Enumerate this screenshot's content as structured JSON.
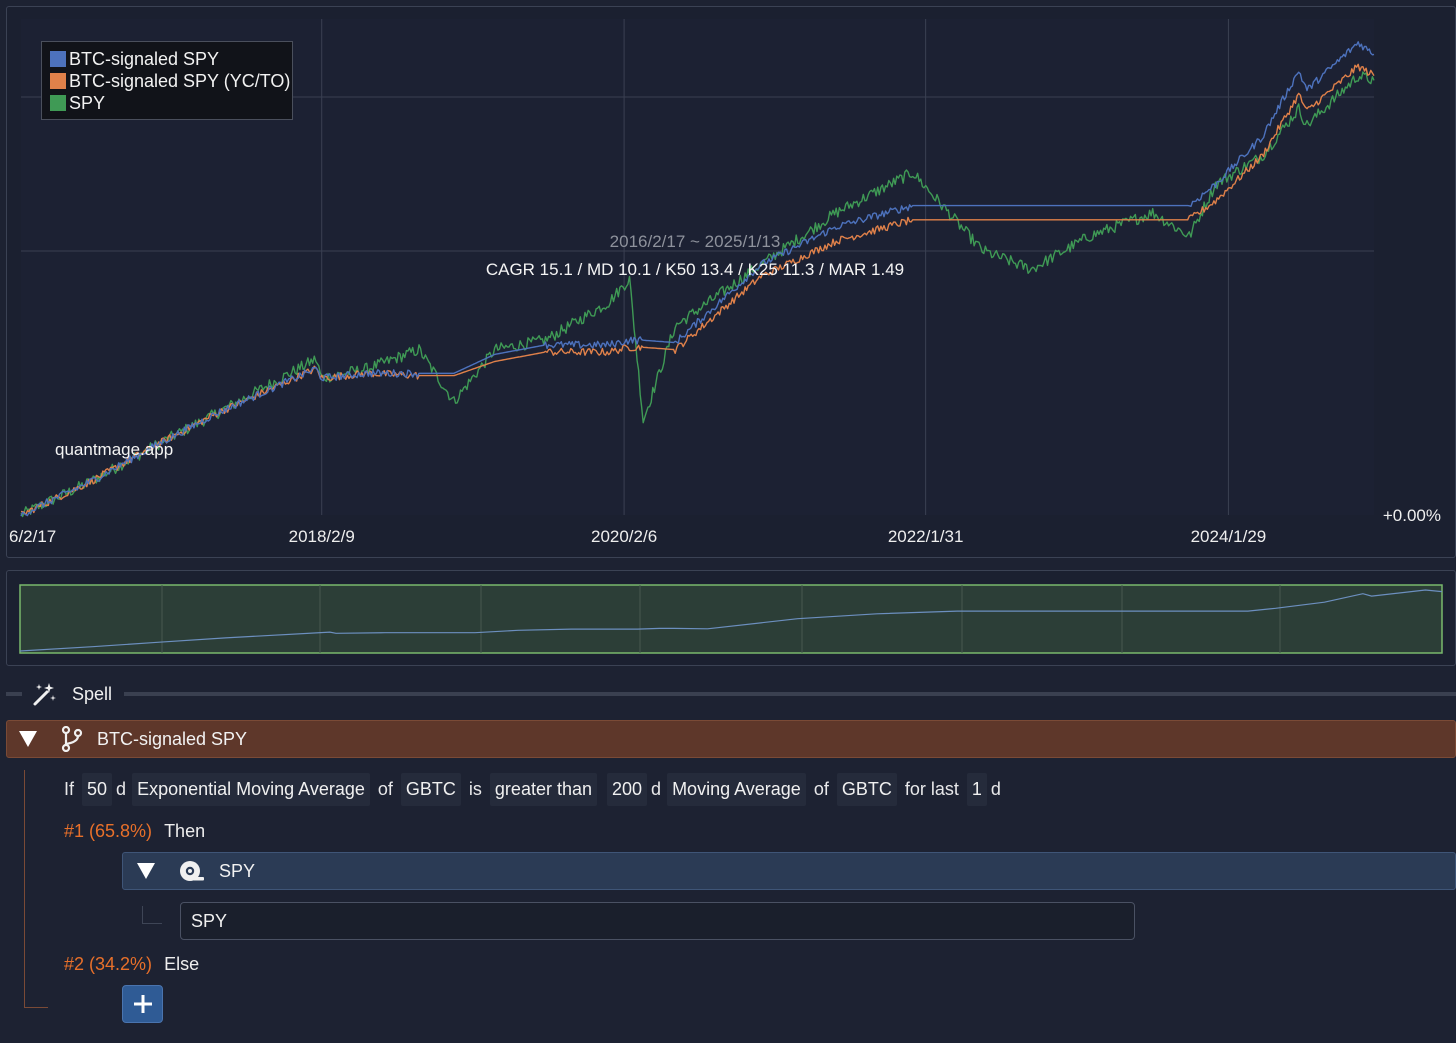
{
  "chart": {
    "legend": [
      {
        "label": "BTC-signaled SPY",
        "color": "#4d72bd"
      },
      {
        "label": "BTC-signaled SPY (YC/TO)",
        "color": "#e0814a"
      },
      {
        "label": "SPY",
        "color": "#3f9a55"
      }
    ],
    "period_label": "2016/2/17 ~ 2025/1/13",
    "stats_label": "CAGR 15.1 / MD 10.1 / K50 13.4 / K25 11.3 / MAR 1.49",
    "watermark": "quantmage.app",
    "y_axis_label": "+0.00%",
    "x_ticks": [
      "6/2/17",
      "2018/2/9",
      "2020/2/6",
      "2022/1/31",
      "2024/1/29"
    ]
  },
  "chart_data": {
    "type": "line",
    "title": "2016/2/17 ~ 2025/1/13",
    "subtitle": "CAGR 15.1 / MD 10.1 / K50 13.4 / K25 11.3 / MAR 1.49",
    "xlabel": "",
    "ylabel": "",
    "x": [
      "2016-02-17",
      "2016-08-01",
      "2017-01-01",
      "2017-06-01",
      "2018-01-26",
      "2018-02-09",
      "2018-06-01",
      "2018-10-01",
      "2018-12-24",
      "2019-04-01",
      "2019-08-01",
      "2019-12-31",
      "2020-02-19",
      "2020-03-23",
      "2020-06-08",
      "2020-12-31",
      "2021-06-30",
      "2021-12-31",
      "2022-06-16",
      "2022-10-12",
      "2023-03-01",
      "2023-07-31",
      "2023-10-27",
      "2023-12-29",
      "2024-04-19",
      "2024-07-16",
      "2024-08-05",
      "2024-12-06",
      "2025-01-13"
    ],
    "series": [
      {
        "name": "BTC-signaled SPY",
        "color": "#4d72bd",
        "values": [
          0,
          14,
          29,
          43,
          62,
          58,
          60,
          60,
          60,
          68,
          72,
          72,
          74,
          74,
          73,
          106,
          122,
          131,
          131,
          131,
          131,
          131,
          131,
          140,
          160,
          188,
          180,
          200,
          195
        ]
      },
      {
        "name": "BTC-signaled SPY (YC/TO)",
        "color": "#e0814a",
        "values": [
          0,
          14,
          29,
          43,
          62,
          58,
          60,
          59,
          59,
          65,
          69,
          69,
          71,
          71,
          70,
          101,
          116,
          125,
          125,
          125,
          125,
          125,
          125,
          133,
          152,
          178,
          171,
          190,
          186
        ]
      },
      {
        "name": "SPY",
        "color": "#3f9a55",
        "values": [
          0,
          14,
          29,
          43,
          66,
          58,
          62,
          70,
          48,
          70,
          74,
          90,
          100,
          40,
          80,
          106,
          128,
          145,
          112,
          104,
          118,
          128,
          118,
          140,
          152,
          172,
          165,
          186,
          184
        ]
      }
    ],
    "ylim": [
      0,
      210
    ],
    "grid": true,
    "legend_position": "top-left"
  },
  "spell": {
    "label": "Spell"
  },
  "branch": {
    "title": "BTC-signaled SPY",
    "condition": {
      "if_word": "If",
      "lhs_period": "50",
      "lhs_unit": "d",
      "lhs_indicator": "Exponential Moving Average",
      "of_word_1": "of",
      "lhs_ticker": "GBTC",
      "is_word": "is",
      "comparator": "greater than",
      "rhs_period": "200",
      "rhs_unit": "d",
      "rhs_indicator": "Moving Average",
      "of_word_2": "of",
      "rhs_ticker": "GBTC",
      "for_last_word": "for last",
      "for_last_value": "1",
      "for_last_unit": "d"
    },
    "then_case": {
      "num_label": "#1 (65.8%)",
      "word": "Then"
    },
    "asset": {
      "title": "SPY",
      "ticker_value": "SPY"
    },
    "else_case": {
      "num_label": "#2 (34.2%)",
      "word": "Else"
    },
    "add_label": "+"
  }
}
